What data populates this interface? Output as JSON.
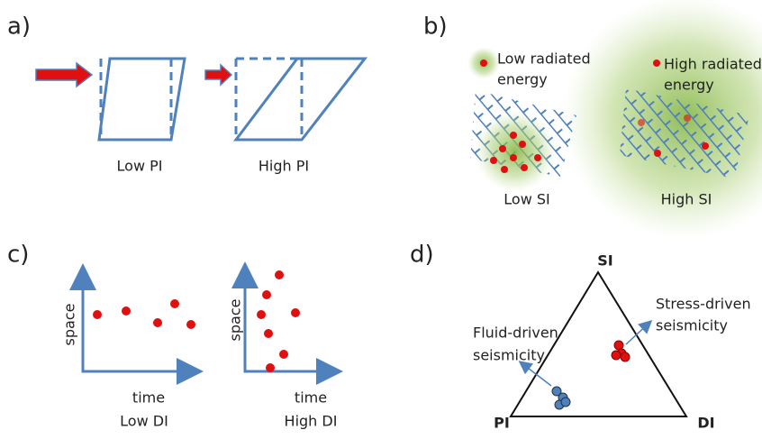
{
  "panels": [
    {
      "label": "a)",
      "captions": [
        "Low PI",
        "High PI"
      ]
    },
    {
      "label": "b)",
      "captions": [
        "Low SI",
        "High SI"
      ],
      "notes": [
        [
          "Low radiated",
          "energy"
        ],
        [
          "High radiated",
          "energy"
        ]
      ]
    },
    {
      "label": "c)",
      "plots": [
        {
          "y_label": "space",
          "x_label": "time",
          "caption": "Low DI"
        },
        {
          "y_label": "space",
          "x_label": "time",
          "caption": "High DI"
        }
      ]
    },
    {
      "label": "d)",
      "vertices": [
        "SI",
        "PI",
        "DI"
      ],
      "notes": [
        [
          "Fluid-driven",
          "seismicity"
        ],
        [
          "Stress-driven",
          "seismicity"
        ]
      ]
    }
  ]
}
